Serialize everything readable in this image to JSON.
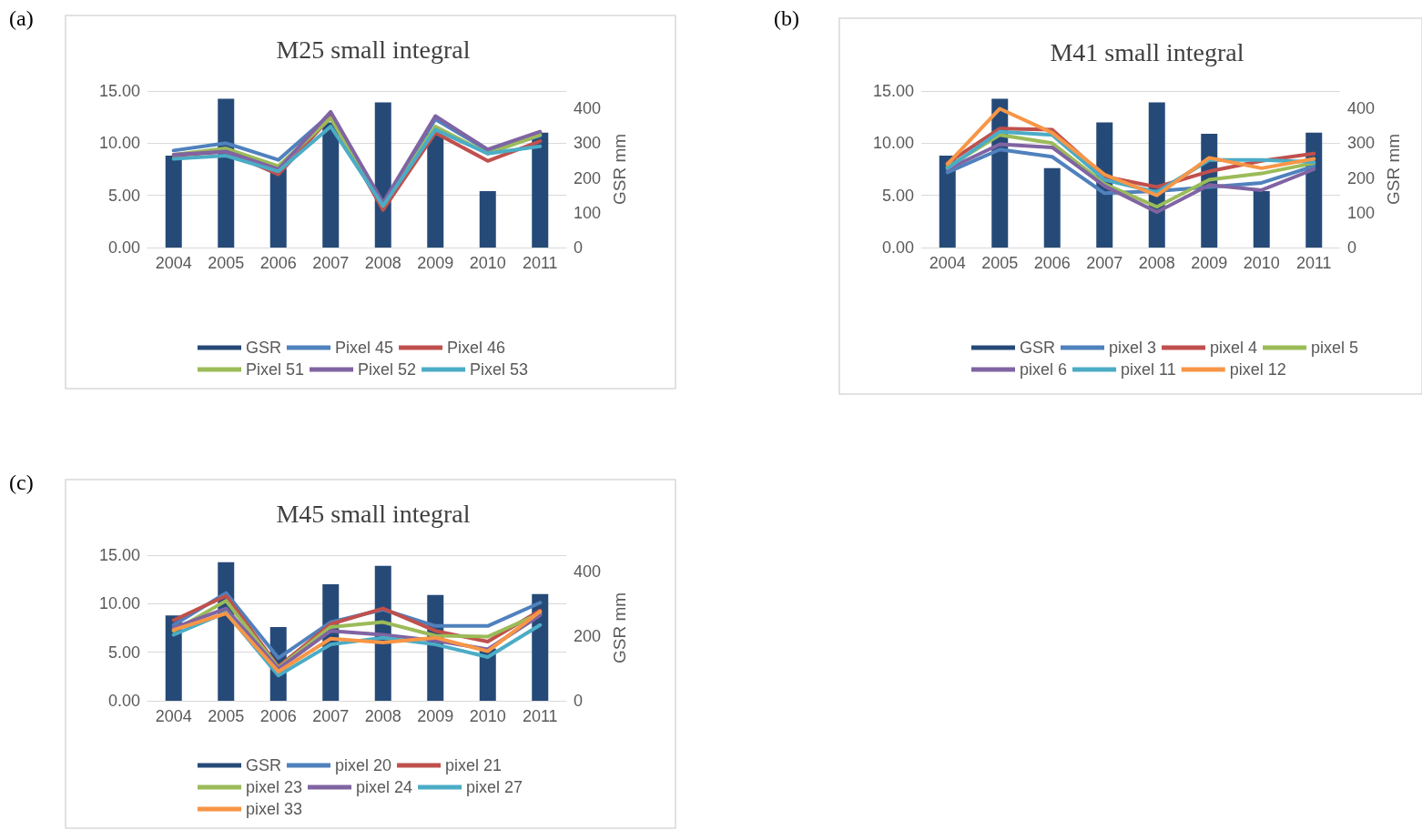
{
  "chart_data": [
    {
      "type": "line",
      "title": "M25 small integral",
      "annotations": [
        "(a)"
      ],
      "y2label": "GSR mm",
      "categories": [
        "2004",
        "2005",
        "2006",
        "2007",
        "2008",
        "2009",
        "2010",
        "2011"
      ],
      "ylim": [
        0,
        15
      ],
      "yticks": [
        {
          "value": 0,
          "label": "0.00"
        },
        {
          "value": 5,
          "label": "5.00"
        },
        {
          "value": 10,
          "label": "10.00"
        },
        {
          "value": 15,
          "label": "15.00"
        }
      ],
      "y2lim": [
        0,
        450
      ],
      "y2ticks": [
        0,
        100,
        200,
        300,
        400
      ],
      "grid": "y",
      "legend": "bottom",
      "marker": "none",
      "series": [
        {
          "name": "GSR",
          "type": "bar",
          "axis": "y2",
          "color": "#264a78",
          "values": [
            264,
            428,
            228,
            360,
            417,
            327,
            162,
            330
          ]
        },
        {
          "name": "Pixel 45",
          "color": "#4f81bd",
          "values": [
            9.3,
            10.0,
            8.4,
            12.8,
            4.2,
            12.3,
            9.3,
            10.7
          ]
        },
        {
          "name": "Pixel 46",
          "color": "#c0504d",
          "values": [
            8.8,
            9.2,
            7.0,
            12.5,
            3.6,
            11.0,
            8.3,
            10.2
          ]
        },
        {
          "name": "Pixel 51",
          "color": "#9bbb59",
          "values": [
            8.9,
            9.5,
            7.8,
            12.4,
            4.0,
            11.6,
            9.0,
            10.8
          ]
        },
        {
          "name": "Pixel 52",
          "color": "#8064a2",
          "values": [
            8.9,
            9.2,
            7.5,
            13.0,
            4.3,
            12.6,
            9.4,
            11.1
          ]
        },
        {
          "name": "Pixel 53",
          "color": "#4bacc6",
          "values": [
            8.5,
            8.8,
            7.3,
            11.6,
            4.0,
            11.3,
            9.0,
            9.7
          ]
        }
      ]
    },
    {
      "type": "line",
      "title": "M41 small integral",
      "annotations": [
        "(b)"
      ],
      "y2label": "GSR mm",
      "categories": [
        "2004",
        "2005",
        "2006",
        "2007",
        "2008",
        "2009",
        "2010",
        "2011"
      ],
      "ylim": [
        0,
        15
      ],
      "yticks": [
        {
          "value": 0,
          "label": "0.00"
        },
        {
          "value": 5,
          "label": "5.00"
        },
        {
          "value": 10,
          "label": "10.00"
        },
        {
          "value": 15,
          "label": "15.00"
        }
      ],
      "y2lim": [
        0,
        450
      ],
      "y2ticks": [
        0,
        100,
        200,
        300,
        400
      ],
      "grid": "y",
      "legend": "bottom",
      "marker": "none",
      "series": [
        {
          "name": "GSR",
          "type": "bar",
          "axis": "y2",
          "color": "#264a78",
          "values": [
            264,
            428,
            228,
            360,
            417,
            327,
            162,
            330
          ]
        },
        {
          "name": "pixel 3",
          "color": "#4f81bd",
          "values": [
            7.2,
            9.4,
            8.7,
            5.2,
            5.4,
            5.8,
            6.2,
            7.8
          ]
        },
        {
          "name": "pixel 4",
          "color": "#c0504d",
          "values": [
            8.1,
            11.4,
            11.3,
            6.8,
            5.8,
            7.3,
            8.3,
            9.0
          ]
        },
        {
          "name": "pixel 5",
          "color": "#9bbb59",
          "values": [
            7.7,
            10.8,
            10.0,
            6.1,
            3.9,
            6.5,
            7.1,
            8.1
          ]
        },
        {
          "name": "pixel 6",
          "color": "#8064a2",
          "values": [
            7.5,
            9.9,
            9.6,
            5.9,
            3.4,
            6.0,
            5.5,
            7.5
          ]
        },
        {
          "name": "pixel 11",
          "color": "#4bacc6",
          "values": [
            7.6,
            11.1,
            10.8,
            6.5,
            5.3,
            8.4,
            8.4,
            8.2
          ]
        },
        {
          "name": "pixel 12",
          "color": "#f79646",
          "values": [
            8.0,
            13.3,
            11.0,
            7.0,
            5.0,
            8.6,
            7.6,
            8.5
          ]
        }
      ]
    },
    {
      "type": "line",
      "title": "M45 small integral",
      "annotations": [
        "(c)"
      ],
      "y2label": "GSR mm",
      "categories": [
        "2004",
        "2005",
        "2006",
        "2007",
        "2008",
        "2009",
        "2010",
        "2011"
      ],
      "ylim": [
        0,
        15
      ],
      "yticks": [
        {
          "value": 0,
          "label": "0.00"
        },
        {
          "value": 5,
          "label": "5.00"
        },
        {
          "value": 10,
          "label": "10.00"
        },
        {
          "value": 15,
          "label": "15.00"
        }
      ],
      "y2lim": [
        0,
        450
      ],
      "y2ticks": [
        0,
        200,
        400
      ],
      "grid": "y",
      "legend": "bottom",
      "marker": "none",
      "series": [
        {
          "name": "GSR",
          "type": "bar",
          "axis": "y2",
          "color": "#264a78",
          "values": [
            264,
            428,
            228,
            360,
            417,
            327,
            162,
            330
          ]
        },
        {
          "name": "pixel 20",
          "color": "#4f81bd",
          "values": [
            7.8,
            11.1,
            4.4,
            8.1,
            9.4,
            7.7,
            7.7,
            10.1
          ]
        },
        {
          "name": "pixel 21",
          "color": "#c0504d",
          "values": [
            8.3,
            10.8,
            3.5,
            7.9,
            9.5,
            7.2,
            6.1,
            9.3
          ]
        },
        {
          "name": "pixel 23",
          "color": "#9bbb59",
          "values": [
            7.2,
            10.3,
            3.4,
            7.6,
            8.1,
            6.7,
            6.6,
            9.0
          ]
        },
        {
          "name": "pixel 24",
          "color": "#8064a2",
          "values": [
            7.5,
            9.5,
            3.3,
            7.2,
            6.8,
            6.2,
            5.3,
            8.8
          ]
        },
        {
          "name": "pixel 27",
          "color": "#4bacc6",
          "values": [
            6.8,
            9.1,
            2.6,
            5.8,
            6.5,
            5.8,
            4.5,
            7.8
          ]
        },
        {
          "name": "pixel 33",
          "color": "#f79646",
          "values": [
            7.3,
            9.0,
            3.0,
            6.4,
            6.0,
            6.5,
            5.1,
            9.2
          ]
        }
      ]
    }
  ]
}
